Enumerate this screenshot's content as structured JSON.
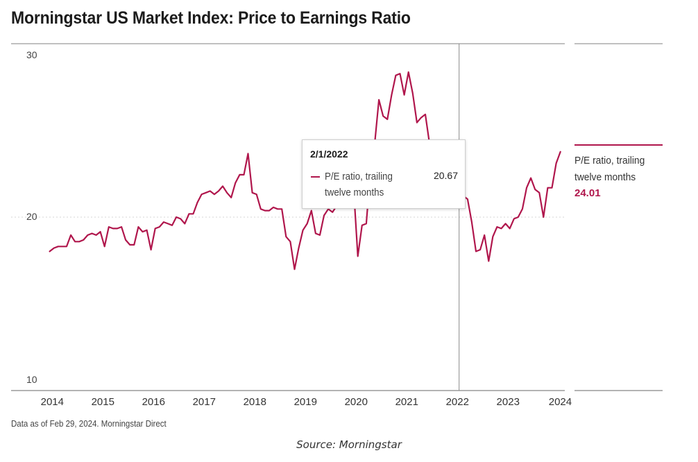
{
  "title": "Morningstar US Market Index: Price to Earnings Ratio",
  "footnote": "Data as of Feb 29, 2024. Morningstar Direct",
  "caption": "Source: Morningstar",
  "legend": {
    "label": "P/E ratio, trailing twelve months",
    "value": "24.01"
  },
  "tooltip": {
    "date": "2/1/2022",
    "series": "P/E ratio, trailing twelve months",
    "value": "20.67"
  },
  "colors": {
    "series": "#b0164c",
    "axis": "#9a9a9a",
    "grid": "#d6d6d6"
  },
  "chart_data": {
    "type": "line",
    "title": "Morningstar US Market Index: Price to Earnings Ratio",
    "xlabel": "",
    "ylabel": "",
    "ylim": [
      10,
      30
    ],
    "yticks": [
      10,
      20,
      30
    ],
    "xlim": [
      2013.95,
      2024.17
    ],
    "xticks": [
      "2014",
      "2015",
      "2016",
      "2017",
      "2018",
      "2019",
      "2020",
      "2021",
      "2022",
      "2023",
      "2024"
    ],
    "grid": "horizontal dotted",
    "legend_position": "right",
    "crosshair_date": "2/1/2022",
    "series": [
      {
        "name": "P/E ratio, trailing twelve months",
        "points": [
          [
            "2014-01",
            17.9
          ],
          [
            "2014-02",
            18.1
          ],
          [
            "2014-03",
            18.2
          ],
          [
            "2014-04",
            18.2
          ],
          [
            "2014-05",
            18.2
          ],
          [
            "2014-06",
            18.9
          ],
          [
            "2014-07",
            18.5
          ],
          [
            "2014-08",
            18.5
          ],
          [
            "2014-09",
            18.6
          ],
          [
            "2014-10",
            18.9
          ],
          [
            "2014-11",
            19.0
          ],
          [
            "2014-12",
            18.9
          ],
          [
            "2015-01",
            19.1
          ],
          [
            "2015-02",
            18.2
          ],
          [
            "2015-03",
            19.4
          ],
          [
            "2015-04",
            19.3
          ],
          [
            "2015-05",
            19.3
          ],
          [
            "2015-06",
            19.4
          ],
          [
            "2015-07",
            18.6
          ],
          [
            "2015-08",
            18.3
          ],
          [
            "2015-09",
            18.3
          ],
          [
            "2015-10",
            19.4
          ],
          [
            "2015-11",
            19.1
          ],
          [
            "2015-12",
            19.2
          ],
          [
            "2016-01",
            18.0
          ],
          [
            "2016-02",
            19.3
          ],
          [
            "2016-03",
            19.4
          ],
          [
            "2016-04",
            19.7
          ],
          [
            "2016-05",
            19.6
          ],
          [
            "2016-06",
            19.5
          ],
          [
            "2016-07",
            20.0
          ],
          [
            "2016-08",
            19.9
          ],
          [
            "2016-09",
            19.6
          ],
          [
            "2016-10",
            20.2
          ],
          [
            "2016-11",
            20.2
          ],
          [
            "2016-12",
            20.9
          ],
          [
            "2017-01",
            21.4
          ],
          [
            "2017-02",
            21.5
          ],
          [
            "2017-03",
            21.6
          ],
          [
            "2017-04",
            21.4
          ],
          [
            "2017-05",
            21.6
          ],
          [
            "2017-06",
            21.9
          ],
          [
            "2017-07",
            21.5
          ],
          [
            "2017-08",
            21.2
          ],
          [
            "2017-09",
            22.1
          ],
          [
            "2017-10",
            22.6
          ],
          [
            "2017-11",
            22.6
          ],
          [
            "2017-12",
            23.9
          ],
          [
            "2018-01",
            21.5
          ],
          [
            "2018-02",
            21.4
          ],
          [
            "2018-03",
            20.5
          ],
          [
            "2018-04",
            20.4
          ],
          [
            "2018-05",
            20.4
          ],
          [
            "2018-06",
            20.6
          ],
          [
            "2018-07",
            20.5
          ],
          [
            "2018-08",
            20.5
          ],
          [
            "2018-09",
            18.8
          ],
          [
            "2018-10",
            18.5
          ],
          [
            "2018-11",
            16.8
          ],
          [
            "2018-12",
            18.1
          ],
          [
            "2019-01",
            19.2
          ],
          [
            "2019-02",
            19.6
          ],
          [
            "2019-03",
            20.4
          ],
          [
            "2019-04",
            19.0
          ],
          [
            "2019-05",
            18.9
          ],
          [
            "2019-06",
            20.1
          ],
          [
            "2019-07",
            20.5
          ],
          [
            "2019-08",
            20.3
          ],
          [
            "2019-09",
            20.7
          ],
          [
            "2019-10",
            21.2
          ],
          [
            "2019-11",
            21.3
          ],
          [
            "2019-12",
            21.6
          ],
          [
            "2020-01",
            21.8
          ],
          [
            "2020-02",
            17.6
          ],
          [
            "2020-03",
            19.5
          ],
          [
            "2020-04",
            19.6
          ],
          [
            "2020-05",
            22.8
          ],
          [
            "2020-06",
            24.5
          ],
          [
            "2020-07",
            27.2
          ],
          [
            "2020-08",
            26.2
          ],
          [
            "2020-09",
            26.0
          ],
          [
            "2020-10",
            27.5
          ],
          [
            "2020-11",
            28.7
          ],
          [
            "2020-12",
            28.8
          ],
          [
            "2021-01",
            27.5
          ],
          [
            "2021-02",
            28.9
          ],
          [
            "2021-03",
            27.6
          ],
          [
            "2021-04",
            25.8
          ],
          [
            "2021-05",
            26.1
          ],
          [
            "2021-06",
            26.3
          ],
          [
            "2021-07",
            24.5
          ],
          [
            "2021-08",
            23.7
          ],
          [
            "2021-09",
            22.8
          ],
          [
            "2021-10",
            22.2
          ],
          [
            "2021-11",
            21.3
          ],
          [
            "2021-12",
            21.0
          ],
          [
            "2022-01",
            20.9
          ],
          [
            "2022-02",
            20.67
          ],
          [
            "2022-03",
            21.3
          ],
          [
            "2022-04",
            21.1
          ],
          [
            "2022-05",
            19.7
          ],
          [
            "2022-06",
            17.9
          ],
          [
            "2022-07",
            18.0
          ],
          [
            "2022-08",
            18.9
          ],
          [
            "2022-09",
            17.3
          ],
          [
            "2022-10",
            18.8
          ],
          [
            "2022-11",
            19.4
          ],
          [
            "2022-12",
            19.3
          ],
          [
            "2023-01",
            19.6
          ],
          [
            "2023-02",
            19.3
          ],
          [
            "2023-03",
            19.9
          ],
          [
            "2023-04",
            20.0
          ],
          [
            "2023-05",
            20.5
          ],
          [
            "2023-06",
            21.8
          ],
          [
            "2023-07",
            22.4
          ],
          [
            "2023-08",
            21.7
          ],
          [
            "2023-09",
            21.5
          ],
          [
            "2023-10",
            20.0
          ],
          [
            "2023-11",
            21.8
          ],
          [
            "2023-12",
            21.8
          ],
          [
            "2024-01",
            23.3
          ],
          [
            "2024-02",
            24.01
          ]
        ]
      }
    ]
  }
}
